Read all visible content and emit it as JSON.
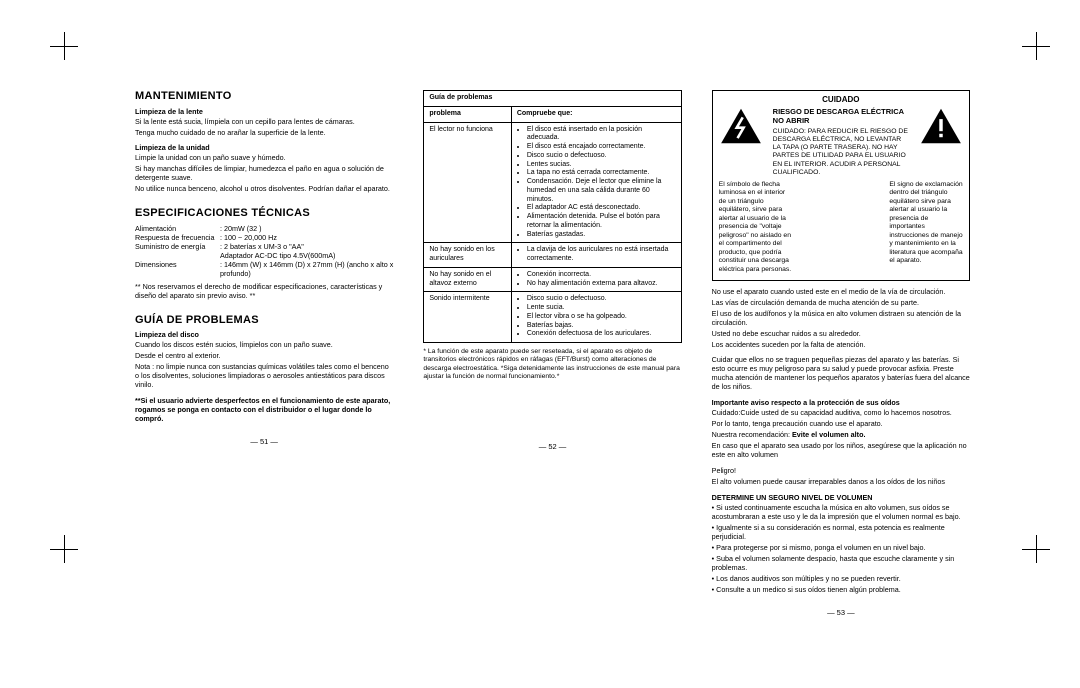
{
  "cropmarks": true,
  "col1": {
    "h_maint": "MANTENIMIENTO",
    "lens_h": "Limpieza de la lente",
    "lens_p1": "Si la lente está sucia, límpiela con un cepillo para lentes de cámaras.",
    "lens_p2": "Tenga mucho cuidado de no arañar la superficie de la lente.",
    "unit_h": "Limpieza de la unidad",
    "unit_p1": "Limpie la unidad con un paño suave y húmedo.",
    "unit_p2": "Si hay manchas difíciles de limpiar, humedezca el paño en agua o solución de detergente suave.",
    "unit_p3": "No utilice nunca benceno, alcohol u otros disolventes. Podrían dañar el aparato.",
    "h_specs": "ESPECIFICACIONES TÉCNICAS",
    "spec1_l": "Alimentación",
    "spec1_v": ": 20mW (32     )",
    "spec2_l": "Respuesta de frecuencia",
    "spec2_v": ": 100 ~ 20,000 Hz",
    "spec3_l": "Suministro de energía",
    "spec3_v": ": 2 baterías x UM-3 o \"AA\"",
    "spec3b_v": "  Adaptador AC-DC  tipo 4.5V(600mA)",
    "spec4_l": "Dimensiones",
    "spec4_v": ": 146mm (W) x 146mm (D) x 27mm (H) (ancho x alto x profundo)",
    "specs_note": "** Nos reservamos el derecho de modificar especificaciones, características y diseño del aparato sin previo aviso. **",
    "h_guide": "GUÍA DE PROBLEMAS",
    "disc_h": "Limpieza del disco",
    "disc_p1": "Cuando los discos estén sucios, límpielos con un paño suave.",
    "disc_p2": "Desde el centro al exterior.",
    "disc_p3": "Nota : no limpie nunca con sustancias químicas volátiles tales como el benceno o los disolventes, soluciones limpiadoras o aerosoles antiestáticos para discos vinilo.",
    "bold1": "**Si el usuario advierte desperfectos en el funcionamiento de este aparato, rogamos se ponga en contacto con el distribuidor o el lugar donde lo compró.",
    "pnum": "— 51 —"
  },
  "col2": {
    "th_title": "Guía de problemas",
    "th1": "problema",
    "th2": "Compruebe que:",
    "r1c1": "El lector no funciona",
    "r1c2": [
      "El disco está insertado en la posición adecuada.",
      "El disco está encajado correctamente.",
      "Disco sucio o defectuoso.",
      "Lentes sucias.",
      "La tapa no está cerrada correctamente.",
      "Condensación. Deje el lector que elimine la humedad en una sala cálida durante 60 minutos.",
      "El adaptador AC está desconectado.",
      "Alimentación detenida. Pulse el botón para retornar la alimentación.",
      "Baterías gastadas."
    ],
    "r2c1": "No hay sonido en los auriculares",
    "r2c2": [
      "La clavija de los auriculares no está insertada correctamente."
    ],
    "r3c1": "No hay sonido en el altavoz externo",
    "r3c2": [
      "Conexión incorrecta.",
      "No hay alimentación externa para altavoz."
    ],
    "r4c1": "Sonido intermitente",
    "r4c2": [
      "Disco sucio o defectuoso.",
      "Lente sucia.",
      "El lector vibra o se ha golpeado.",
      "Baterías bajas.",
      "Conexión defectuosa de los auriculares."
    ],
    "foot": "* La función de este aparato puede ser reseteada, si el aparato es objeto de transitorios electrónicos rápidos en ráfagas (EFT/Burst) como alteraciones de descarga electroestática. *Siga detenidamente las instrucciones de este manual para ajustar la función de normal funcionamiento.*",
    "pnum": "— 52 —"
  },
  "col3": {
    "cuidado": "CUIDADO",
    "mid1": "RIESGO DE DESCARGA ELÉCTRICA",
    "mid2": "NO ABRIR",
    "mid3": "CUIDADO: PARA REDUCIR EL RIESGO DE DESCARGA ELÉCTRICA, NO LEVANTAR LA TAPA (O PARTE TRASERA). NO HAY PARTES DE UTILIDAD PARA EL USUARIO EN EL INTERIOR. ACUDIR A PERSONAL CUALIFICADO.",
    "left_text": "El símbolo de flecha luminosa en el interior de un triángulo equilátero, sirve para alertar al usuario de la presencia de \"voltaje peligroso\" no aislado en el compartimento del producto, que podría constituir una descarga eléctrica para personas.",
    "right_text": "El signo de exclamación dentro del triángulo equilátero sirve para alertar al usuario la presencia de importantes instrucciones de manejo y mantenimiento en la literatura que acompaña el aparato.",
    "b1": "No use el aparato cuando usted este en el medio de la vía de circulación.",
    "b2": "Las vías de circulación demanda de mucha atención de su parte.",
    "b3": "El uso de los audífonos y la música en alto volumen distraen su atención de la circulación.",
    "b4": "Usted no debe escuchar ruidos a su alrededor.",
    "b5": "Los accidentes suceden por la falta de atención.",
    "b6": "Cuidar que ellos no se traguen pequeñas piezas del aparato y las baterías. Si esto ocurre es muy peligroso para su salud y puede provocar asfixia. Preste mucha atención de mantener los pequeños aparatos y baterías fuera del alcance de los niños.",
    "h_ear": "Importante aviso respecto a la protección de sus oídos",
    "ear1": "Cuidado:Cuide usted de su capacidad auditiva, como lo hacemos nosotros.",
    "ear2": "Por lo tanto, tenga precaución cuando use el aparato.",
    "ear3_a": "Nuestra recomendación: ",
    "ear3_b": "Evite el volumen alto.",
    "ear4": "En caso que el aparato sea usado por los niños, asegúrese que la aplicación no este en alto volumen",
    "peligro": "Peligro!",
    "peligro_p": "El alto volumen puede causar irreparables danos a los oídos de los niños",
    "h_vol": "DETERMINE UN SEGURO NIVEL DE VOLUMEN",
    "v1": "• Si usted continuamente escucha la música en alto volumen, sus oídos se   acostumbraran a este uso y le da la impresión que el volumen normal es bajo.",
    "v2": "• Igualmente si a su consideración es normal, esta potencia es realmente perjudicial.",
    "v3": "• Para protegerse por si mismo, ponga el volumen en un nivel bajo.",
    "v4": "• Suba el volumen solamente despacio, hasta que escuche claramente y sin problemas.",
    "v5": "• Los danos auditivos son múltiples y no se pueden revertir.",
    "v6": "• Consulte a un medico si sus oídos tienen algún problema.",
    "pnum": "— 53 —"
  }
}
